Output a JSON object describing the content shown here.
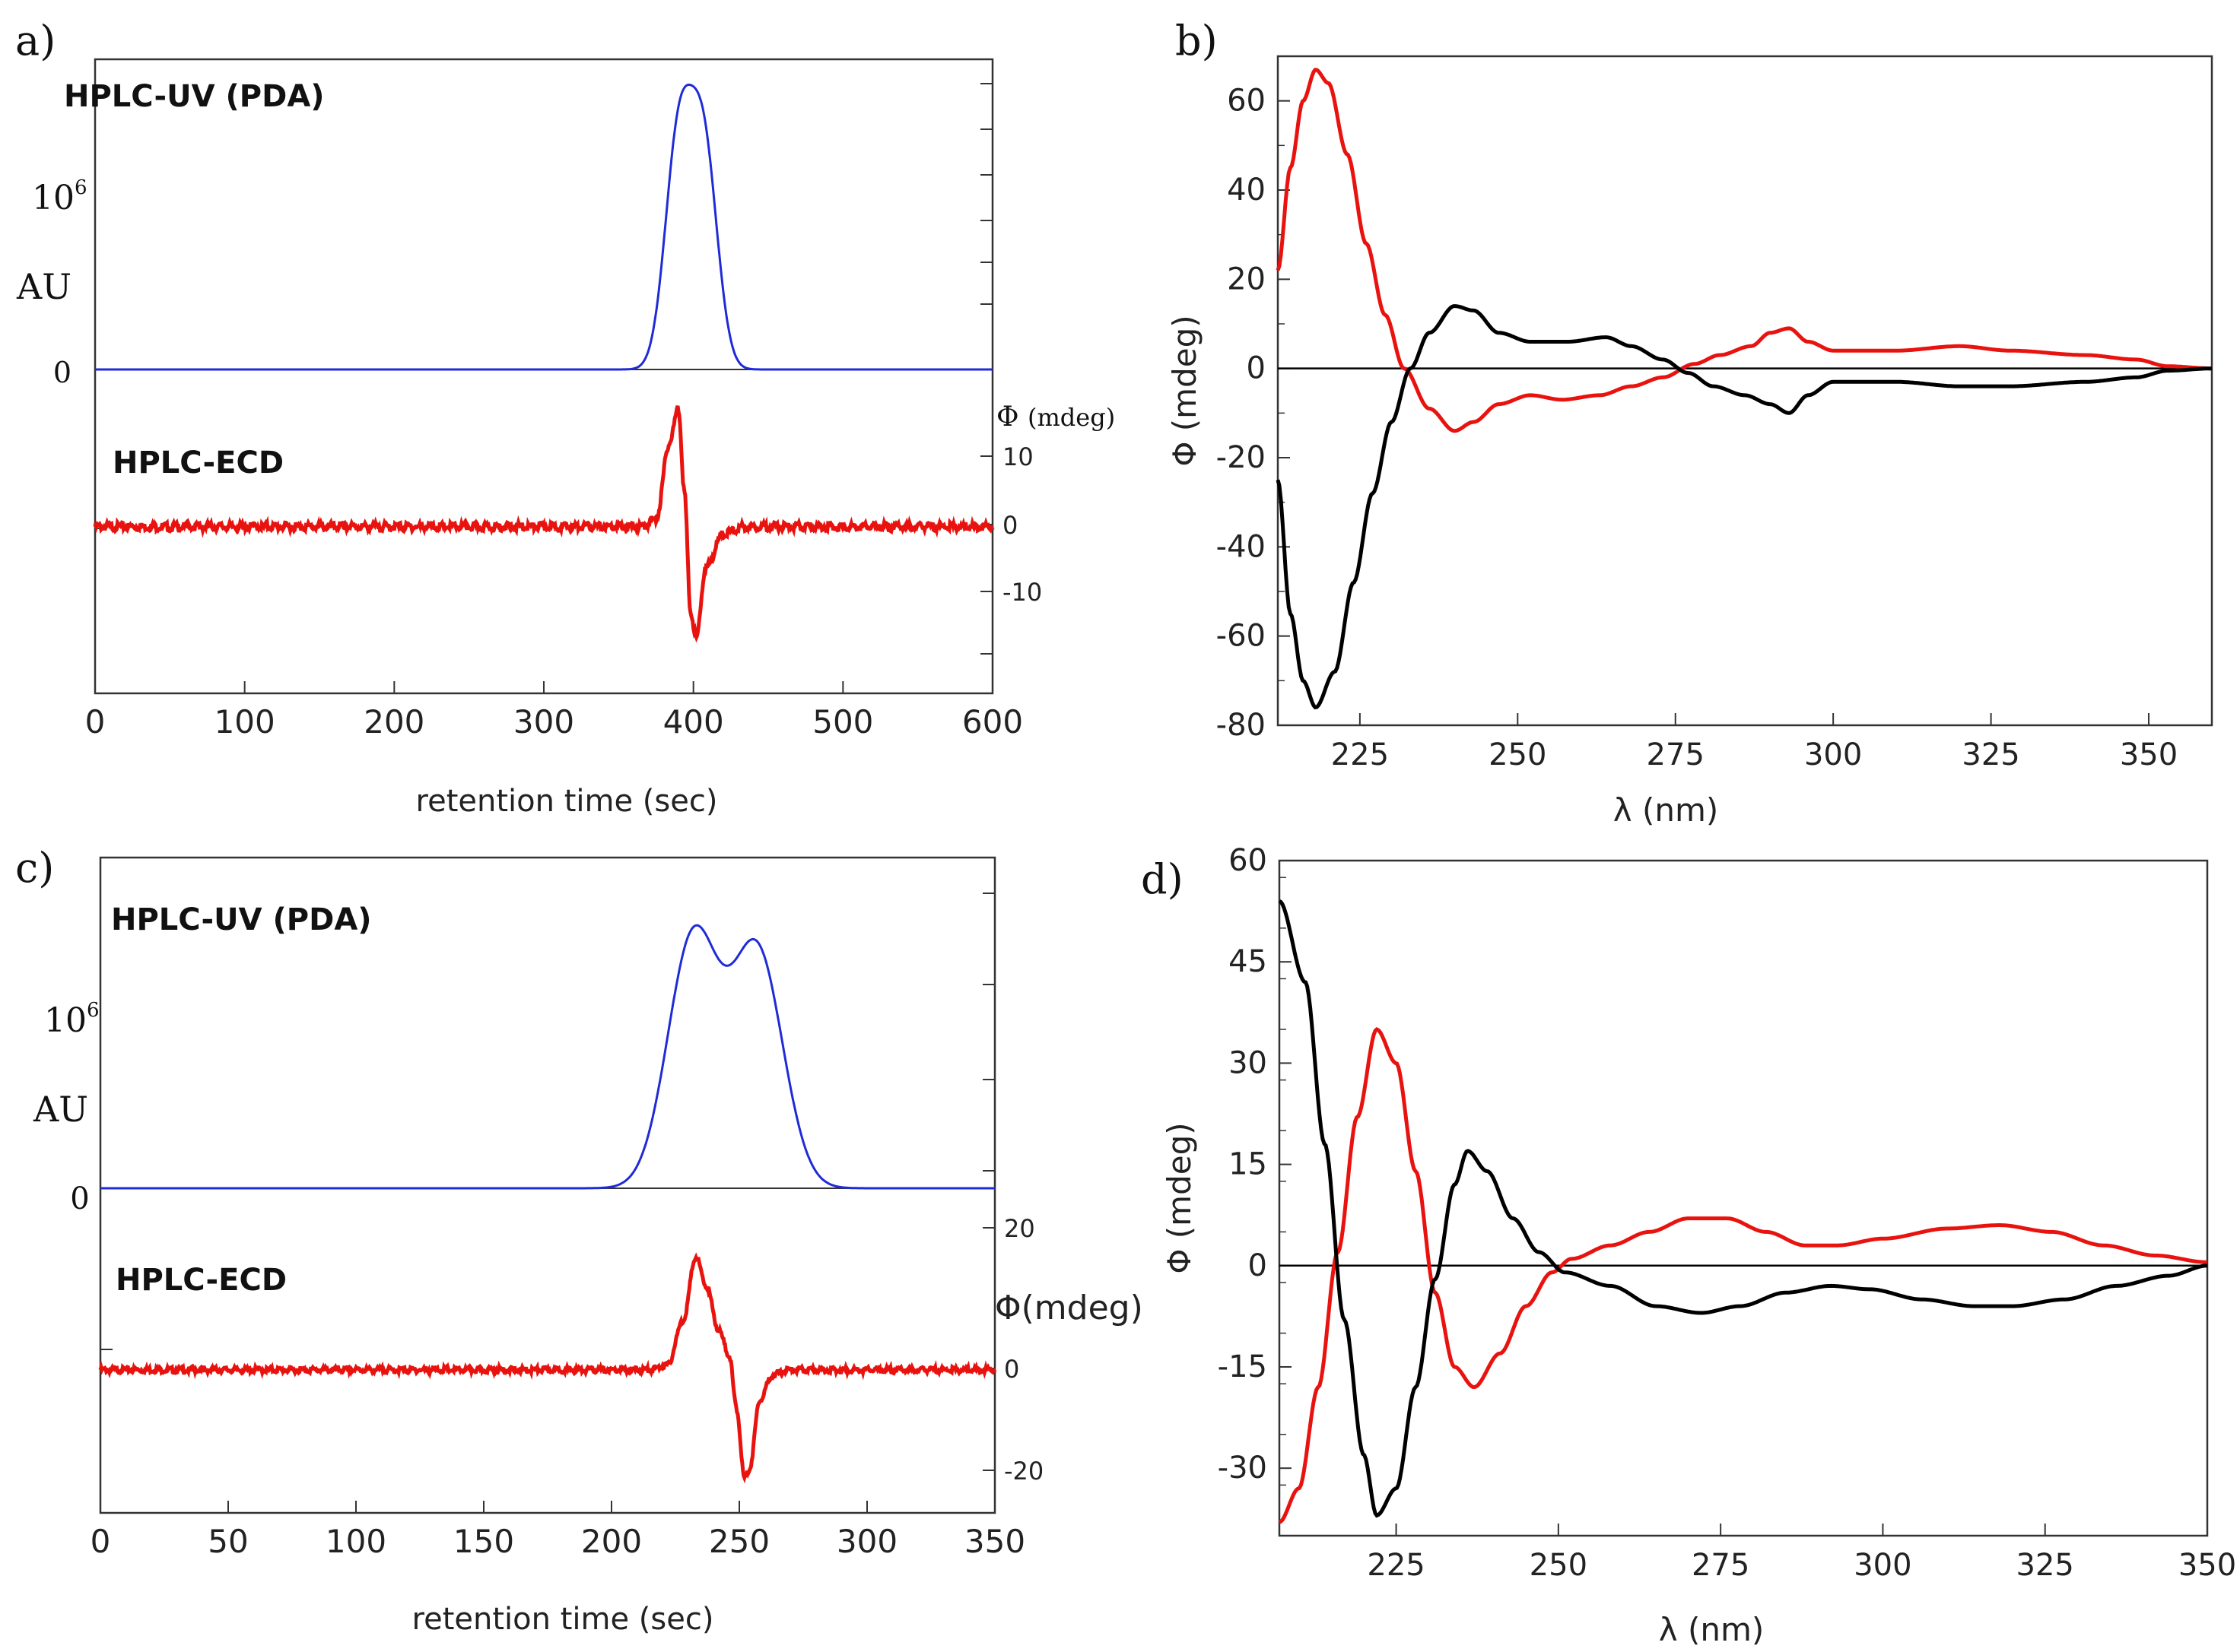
{
  "chart_data": [
    {
      "panel": "a)",
      "type": "line",
      "xlabel": "retention time (sec)",
      "xlim": [
        0,
        600
      ],
      "xticks": [
        0,
        100,
        200,
        300,
        400,
        500,
        600
      ],
      "uv_trace": {
        "label": "HPLC-UV (PDA)",
        "ylabel": "AU",
        "scale_label": "10",
        "scale_exponent": "6",
        "zero_label": "0",
        "color": "#1f2bd6",
        "peaks": [
          {
            "x": 390,
            "height": 1.0,
            "width": 9
          },
          {
            "x": 407,
            "height": 0.96,
            "width": 9
          }
        ]
      },
      "ecd_trace": {
        "label": "HPLC-ECD",
        "ylabel": "Φ",
        "unit_label": "(mdeg)",
        "yticks": [
          "10",
          "0",
          "-10"
        ],
        "ylim": [
          -20,
          20
        ],
        "color": "#e8130f",
        "points": [
          [
            0,
            0
          ],
          [
            365,
            0
          ],
          [
            375,
            1
          ],
          [
            384,
            12
          ],
          [
            390,
            17
          ],
          [
            394,
            5
          ],
          [
            398,
            -12
          ],
          [
            402,
            -16
          ],
          [
            408,
            -6
          ],
          [
            420,
            -1
          ],
          [
            435,
            0
          ],
          [
            600,
            0
          ]
        ]
      }
    },
    {
      "panel": "b)",
      "type": "line",
      "xlabel": "λ (nm)",
      "ylabel": "Φ (mdeg)",
      "xlim": [
        212,
        360
      ],
      "ylim": [
        -80,
        70
      ],
      "xticks": [
        225,
        250,
        275,
        300,
        325,
        350
      ],
      "yticks": [
        -80,
        -60,
        -40,
        -20,
        0,
        20,
        40,
        60
      ],
      "series": [
        {
          "name": "red",
          "color": "#e8130f",
          "points": [
            [
              212,
              22
            ],
            [
              214,
              45
            ],
            [
              216,
              60
            ],
            [
              218,
              67
            ],
            [
              220,
              64
            ],
            [
              223,
              48
            ],
            [
              226,
              28
            ],
            [
              229,
              12
            ],
            [
              232,
              0
            ],
            [
              236,
              -9
            ],
            [
              240,
              -14
            ],
            [
              243,
              -12
            ],
            [
              247,
              -8
            ],
            [
              252,
              -6
            ],
            [
              257,
              -7
            ],
            [
              263,
              -6
            ],
            [
              268,
              -4
            ],
            [
              273,
              -2
            ],
            [
              278,
              1
            ],
            [
              282,
              3
            ],
            [
              287,
              5
            ],
            [
              290,
              8
            ],
            [
              293,
              9
            ],
            [
              296,
              6
            ],
            [
              300,
              4
            ],
            [
              310,
              4
            ],
            [
              320,
              5
            ],
            [
              328,
              4
            ],
            [
              340,
              3
            ],
            [
              348,
              2
            ],
            [
              353,
              0.5
            ],
            [
              360,
              0
            ]
          ]
        },
        {
          "name": "black",
          "color": "#000000",
          "points": [
            [
              212,
              -25
            ],
            [
              214,
              -55
            ],
            [
              216,
              -70
            ],
            [
              218,
              -76
            ],
            [
              221,
              -68
            ],
            [
              224,
              -48
            ],
            [
              227,
              -28
            ],
            [
              230,
              -12
            ],
            [
              233,
              0
            ],
            [
              236,
              8
            ],
            [
              240,
              14
            ],
            [
              243,
              13
            ],
            [
              247,
              8
            ],
            [
              252,
              6
            ],
            [
              258,
              6
            ],
            [
              264,
              7
            ],
            [
              268,
              5
            ],
            [
              273,
              2
            ],
            [
              277,
              -1
            ],
            [
              281,
              -4
            ],
            [
              286,
              -6
            ],
            [
              290,
              -8
            ],
            [
              293,
              -10
            ],
            [
              296,
              -6
            ],
            [
              300,
              -3
            ],
            [
              310,
              -3
            ],
            [
              320,
              -4
            ],
            [
              328,
              -4
            ],
            [
              340,
              -3
            ],
            [
              348,
              -2
            ],
            [
              353,
              -0.5
            ],
            [
              360,
              0
            ]
          ]
        }
      ],
      "zero_line": true
    },
    {
      "panel": "c)",
      "type": "line",
      "xlabel": "retention time (sec)",
      "xlim": [
        0,
        350
      ],
      "xticks": [
        0,
        50,
        100,
        150,
        200,
        250,
        300,
        350
      ],
      "uv_trace": {
        "label": "HPLC-UV (PDA)",
        "ylabel": "AU",
        "scale_label": "10",
        "scale_exponent": "6",
        "zero_label": "0",
        "color": "#1f2bd6",
        "peaks": [
          {
            "x": 232,
            "height": 1.0,
            "width": 10
          },
          {
            "x": 257,
            "height": 0.94,
            "width": 10
          }
        ]
      },
      "ecd_trace": {
        "label": "HPLC-ECD",
        "ylabel": "Φ(mdeg)",
        "yticks": [
          "20",
          "0",
          "-20"
        ],
        "ylim": [
          -30,
          30
        ],
        "color": "#e8130f",
        "points": [
          [
            0,
            0
          ],
          [
            215,
            0
          ],
          [
            222,
            1
          ],
          [
            228,
            10
          ],
          [
            233,
            23
          ],
          [
            237,
            17
          ],
          [
            242,
            8
          ],
          [
            246,
            3
          ],
          [
            249,
            -8
          ],
          [
            252,
            -22
          ],
          [
            254,
            -20
          ],
          [
            258,
            -6
          ],
          [
            263,
            -1
          ],
          [
            270,
            0
          ],
          [
            350,
            0
          ]
        ]
      }
    },
    {
      "panel": "d)",
      "type": "line",
      "xlabel": "λ (nm)",
      "ylabel": "Φ (mdeg)",
      "xlim": [
        207,
        350
      ],
      "ylim": [
        -40,
        60
      ],
      "xticks": [
        225,
        250,
        275,
        300,
        325,
        350
      ],
      "yticks": [
        -30,
        -15,
        0,
        15,
        30,
        45,
        60
      ],
      "series": [
        {
          "name": "red",
          "color": "#e8130f",
          "points": [
            [
              207,
              -38
            ],
            [
              210,
              -33
            ],
            [
              213,
              -18
            ],
            [
              216,
              2
            ],
            [
              219,
              22
            ],
            [
              222,
              35
            ],
            [
              225,
              30
            ],
            [
              228,
              14
            ],
            [
              231,
              -4
            ],
            [
              234,
              -15
            ],
            [
              237,
              -18
            ],
            [
              241,
              -13
            ],
            [
              245,
              -6
            ],
            [
              249,
              -1
            ],
            [
              252,
              1
            ],
            [
              258,
              3
            ],
            [
              264,
              5
            ],
            [
              270,
              7
            ],
            [
              276,
              7
            ],
            [
              282,
              5
            ],
            [
              288,
              3
            ],
            [
              293,
              3
            ],
            [
              300,
              4
            ],
            [
              310,
              5.5
            ],
            [
              318,
              6
            ],
            [
              326,
              5
            ],
            [
              334,
              3
            ],
            [
              342,
              1.5
            ],
            [
              350,
              0.5
            ]
          ]
        },
        {
          "name": "black",
          "color": "#000000",
          "points": [
            [
              207,
              54
            ],
            [
              211,
              42
            ],
            [
              214,
              18
            ],
            [
              217,
              -8
            ],
            [
              220,
              -28
            ],
            [
              222,
              -37
            ],
            [
              225,
              -33
            ],
            [
              228,
              -18
            ],
            [
              231,
              -2
            ],
            [
              234,
              12
            ],
            [
              236,
              17
            ],
            [
              239,
              14
            ],
            [
              243,
              7
            ],
            [
              247,
              2
            ],
            [
              251,
              -1
            ],
            [
              258,
              -3
            ],
            [
              265,
              -6
            ],
            [
              272,
              -7
            ],
            [
              278,
              -6
            ],
            [
              285,
              -4
            ],
            [
              292,
              -3
            ],
            [
              298,
              -3.5
            ],
            [
              306,
              -5
            ],
            [
              314,
              -6
            ],
            [
              320,
              -6
            ],
            [
              328,
              -5
            ],
            [
              336,
              -3
            ],
            [
              344,
              -1.5
            ],
            [
              350,
              0
            ]
          ]
        }
      ],
      "zero_line": true
    }
  ]
}
